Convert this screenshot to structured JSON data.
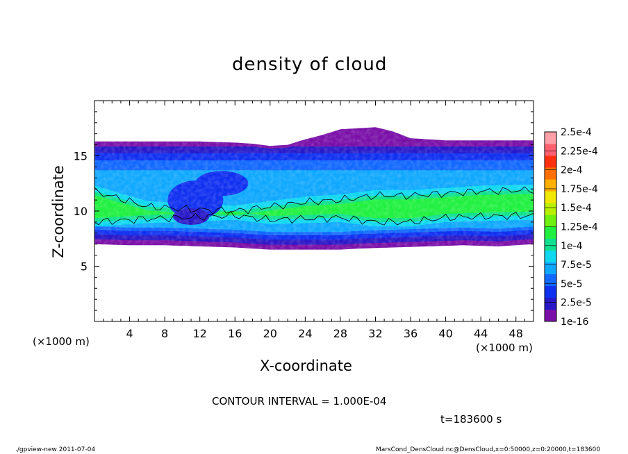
{
  "chart_data": {
    "type": "heatmap",
    "title": "density of cloud",
    "xlabel": "X-coordinate",
    "ylabel": "Z-coordinate",
    "x_unit": "(×1000 m)",
    "z_unit": "(×1000 m)",
    "xlim": [
      0,
      50
    ],
    "ylim": [
      0,
      20
    ],
    "x_ticks": [
      4,
      8,
      12,
      16,
      20,
      24,
      28,
      32,
      36,
      40,
      44,
      48
    ],
    "y_ticks": [
      5,
      10,
      15
    ],
    "colorbar": {
      "labels": [
        "1e-16",
        "2.5e-5",
        "5e-5",
        "7.5e-5",
        "1e-4",
        "1.25e-4",
        "1.5e-4",
        "1.75e-4",
        "2e-4",
        "2.25e-4",
        "2.5e-4"
      ],
      "colors": [
        "#7a10a8",
        "#2818c8",
        "#1030f0",
        "#1268ff",
        "#10a8ff",
        "#10d8f0",
        "#10e090",
        "#20f040",
        "#70f010",
        "#b8f000",
        "#f0e800",
        "#ffb000",
        "#ff7000",
        "#ff3010",
        "#ff6070",
        "#ffa0a8"
      ]
    },
    "contour_interval": "CONTOUR INTERVAL = 1.000E-04",
    "cloud_top_km": [
      [
        0,
        16.3
      ],
      [
        4,
        16.3
      ],
      [
        8,
        16.3
      ],
      [
        12,
        16.3
      ],
      [
        16,
        16.2
      ],
      [
        18,
        16.1
      ],
      [
        20,
        15.9
      ],
      [
        22,
        16.0
      ],
      [
        24,
        16.5
      ],
      [
        26,
        16.9
      ],
      [
        28,
        17.4
      ],
      [
        30,
        17.5
      ],
      [
        32,
        17.6
      ],
      [
        34,
        17.2
      ],
      [
        36,
        16.6
      ],
      [
        40,
        16.4
      ],
      [
        44,
        16.4
      ],
      [
        48,
        16.4
      ],
      [
        50,
        16.4
      ]
    ],
    "cloud_bottom_km": [
      [
        0,
        7.0
      ],
      [
        4,
        6.9
      ],
      [
        8,
        6.9
      ],
      [
        12,
        6.8
      ],
      [
        16,
        6.7
      ],
      [
        18,
        6.6
      ],
      [
        20,
        6.5
      ],
      [
        24,
        6.5
      ],
      [
        28,
        6.5
      ],
      [
        30,
        6.6
      ],
      [
        34,
        6.7
      ],
      [
        38,
        6.8
      ],
      [
        42,
        6.9
      ],
      [
        46,
        6.8
      ],
      [
        50,
        7.0
      ]
    ],
    "high_density_band_km": [
      [
        0,
        9.0,
        11.8
      ],
      [
        6,
        9.3,
        10.4
      ],
      [
        10,
        9.4,
        10.2
      ],
      [
        16,
        9.6,
        10.0
      ],
      [
        20,
        9.2,
        10.4
      ],
      [
        24,
        9.3,
        10.8
      ],
      [
        28,
        9.4,
        11.0
      ],
      [
        32,
        9.0,
        11.4
      ],
      [
        36,
        9.0,
        11.4
      ],
      [
        40,
        9.4,
        11.6
      ],
      [
        44,
        9.5,
        11.8
      ],
      [
        50,
        9.6,
        11.9
      ]
    ],
    "hole_center_km": [
      11.5,
      11.0
    ]
  },
  "time_label": "t=183600 s",
  "footer": {
    "left": "./gpview-new  2011-07-04",
    "right": "MarsCond_DensCloud.nc@DensCloud,x=0:50000,z=0:20000,t=183600"
  }
}
